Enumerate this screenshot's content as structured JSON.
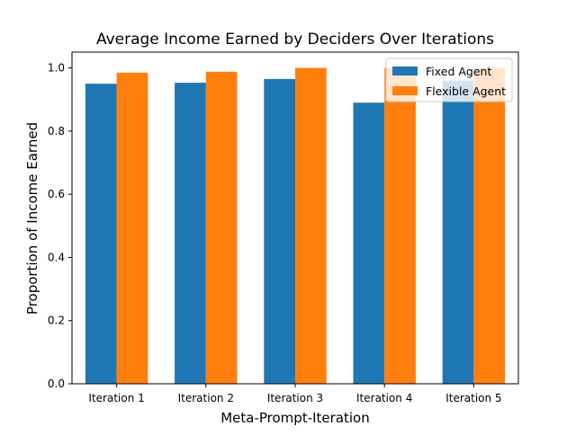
{
  "chart_data": {
    "type": "bar",
    "title": "Average Income Earned by Deciders Over Iterations",
    "xlabel": "Meta-Prompt-Iteration",
    "ylabel": "Proportion of Income Earned",
    "categories": [
      "Iteration 1",
      "Iteration 2",
      "Iteration 3",
      "Iteration 4",
      "Iteration 5"
    ],
    "series": [
      {
        "name": "Fixed Agent",
        "color": "#1f77b4",
        "values": [
          0.95,
          0.953,
          0.965,
          0.89,
          0.96
        ]
      },
      {
        "name": "Flexible Agent",
        "color": "#ff7f0e",
        "values": [
          0.985,
          0.988,
          1.0,
          1.0,
          1.0
        ]
      }
    ],
    "ylim": [
      0,
      1.05
    ],
    "yticks": [
      0.0,
      0.2,
      0.4,
      0.6,
      0.8,
      1.0
    ],
    "ytick_labels": [
      "0.0",
      "0.2",
      "0.4",
      "0.6",
      "0.8",
      "1.0"
    ],
    "grid": false,
    "legend_position": "top-right"
  }
}
